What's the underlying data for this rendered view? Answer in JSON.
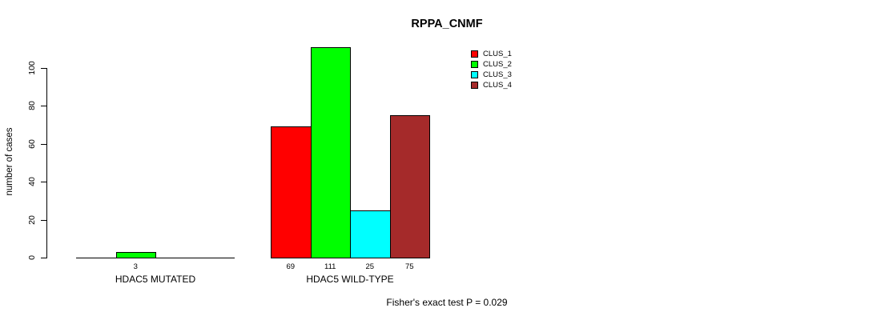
{
  "title": "RPPA_CNMF",
  "ylabel": "number of cases",
  "footer": "Fisher's exact test P = 0.029",
  "legend": [
    {
      "label": "CLUS_1",
      "color": "#FF0000"
    },
    {
      "label": "CLUS_2",
      "color": "#00FF00"
    },
    {
      "label": "CLUS_3",
      "color": "#00FFFF"
    },
    {
      "label": "CLUS_4",
      "color": "#A52A2A"
    }
  ],
  "chart_data": {
    "type": "bar",
    "title": "RPPA_CNMF",
    "xlabel": "",
    "ylabel": "number of cases",
    "categories": [
      "HDAC5 MUTATED",
      "HDAC5 WILD-TYPE"
    ],
    "series": [
      {
        "name": "CLUS_1",
        "color": "#FF0000",
        "values": [
          0,
          69
        ]
      },
      {
        "name": "CLUS_2",
        "color": "#00FF00",
        "values": [
          3,
          111
        ]
      },
      {
        "name": "CLUS_3",
        "color": "#00FFFF",
        "values": [
          0,
          25
        ]
      },
      {
        "name": "CLUS_4",
        "color": "#A52A2A",
        "values": [
          0,
          75
        ]
      }
    ],
    "bar_value_labels": {
      "show_zero": false
    },
    "ylim": [
      0,
      100
    ],
    "yticks": [
      0,
      20,
      40,
      60,
      80,
      100
    ],
    "grid": false,
    "legend_position": "top-right-of-plot",
    "annotation": "Fisher's exact test P = 0.029"
  }
}
